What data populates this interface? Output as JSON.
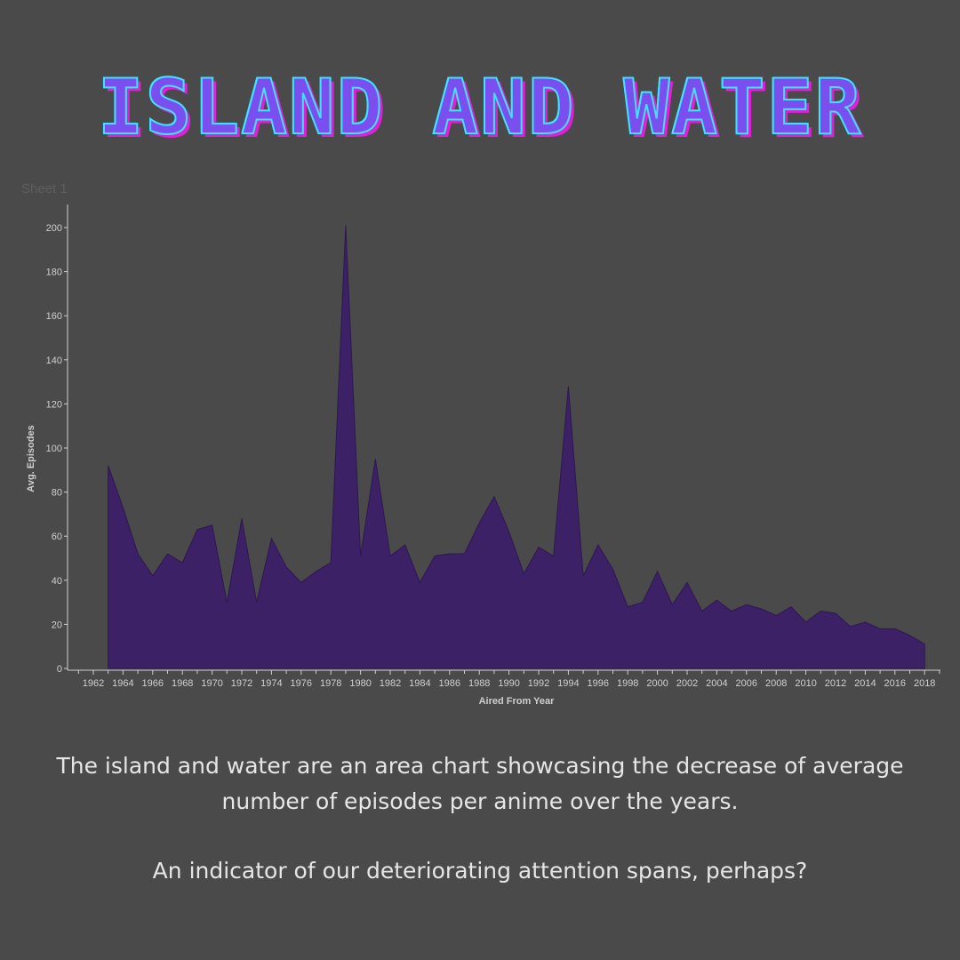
{
  "header": {
    "title": "ISLAND AND WATER"
  },
  "sheet_label": "Sheet 1",
  "caption": {
    "line1": "The island and water are an area chart showcasing the decrease of average number of episodes per anime over the years.",
    "line2": "An indicator of our deteriorating attention spans, perhaps?"
  },
  "colors": {
    "background": "#4a4a4a",
    "area": "#3c2166",
    "axis": "#cfcfcf",
    "text": "#e6e6e6"
  },
  "chart_data": {
    "type": "area",
    "xlabel": "Aired From Year",
    "ylabel": "Avg. Episodes",
    "xlim": [
      1961,
      2020
    ],
    "ylim": [
      0,
      210
    ],
    "x_ticks": [
      1962,
      1964,
      1966,
      1968,
      1970,
      1972,
      1974,
      1976,
      1978,
      1980,
      1982,
      1984,
      1986,
      1988,
      1990,
      1992,
      1994,
      1996,
      1998,
      2000,
      2002,
      2004,
      2006,
      2008,
      2010,
      2012,
      2014,
      2016,
      2018
    ],
    "y_ticks": [
      0,
      20,
      40,
      60,
      80,
      100,
      120,
      140,
      160,
      180,
      200
    ],
    "grid": false,
    "x": [
      1963,
      1964,
      1965,
      1966,
      1967,
      1968,
      1969,
      1970,
      1971,
      1972,
      1973,
      1974,
      1975,
      1976,
      1977,
      1978,
      1979,
      1980,
      1981,
      1982,
      1983,
      1984,
      1985,
      1986,
      1987,
      1988,
      1989,
      1990,
      1991,
      1992,
      1993,
      1994,
      1995,
      1996,
      1997,
      1998,
      1999,
      2000,
      2001,
      2002,
      2003,
      2004,
      2005,
      2006,
      2007,
      2008,
      2009,
      2010,
      2011,
      2012,
      2013,
      2014,
      2015,
      2016,
      2017,
      2018
    ],
    "y": [
      92,
      73,
      52,
      42,
      52,
      48,
      63,
      65,
      30,
      68,
      30,
      59,
      46,
      39,
      44,
      48,
      201,
      51,
      95,
      51,
      56,
      39,
      51,
      52,
      52,
      66,
      78,
      62,
      43,
      55,
      51,
      128,
      42,
      56,
      45,
      28,
      30,
      44,
      29,
      39,
      26,
      31,
      26,
      29,
      27,
      24,
      28,
      21,
      26,
      25,
      19,
      21,
      18,
      18,
      15,
      11
    ]
  }
}
